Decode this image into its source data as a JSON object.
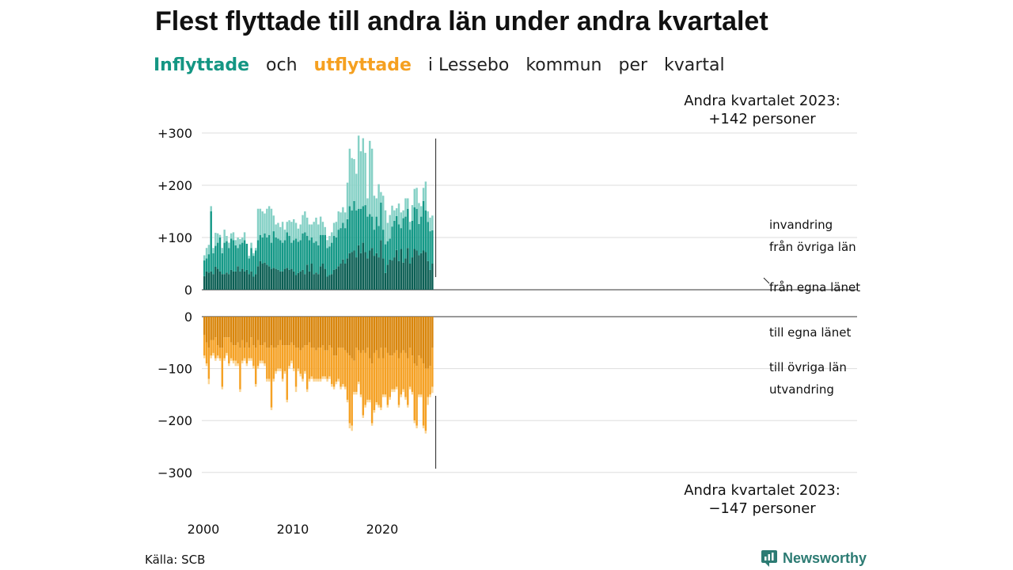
{
  "header": {
    "title": "Flest flyttade till andra län under andra kvartalet",
    "subtitle_in": "Inflyttade",
    "subtitle_och": "och",
    "subtitle_ut": "utflyttade",
    "subtitle_rest_1": "i Lessebo",
    "subtitle_rest_2": "kommun",
    "subtitle_rest_3": "per",
    "subtitle_rest_4": "kvartal"
  },
  "annotations": {
    "top_line1": "Andra kvartalet 2023:",
    "top_line2": "+142 personer",
    "bottom_line1": "Andra kvartalet 2023:",
    "bottom_line2": "−147 personer"
  },
  "footer": {
    "source": "Källa: SCB",
    "brand": "Newsworthy"
  },
  "colors": {
    "in_egna": "#0c5f54",
    "in_ovriga": "#159987",
    "in_invandring": "#86d1c6",
    "ut_egna": "#d9860c",
    "ut_ovriga": "#f5a124",
    "ut_utvandring": "#fbd595",
    "grid": "#dddddd",
    "brand": "#2c7b73"
  },
  "chart_data": {
    "type": "bar",
    "title": "Flest flyttade till andra län under andra kvartalet",
    "y_ticks_top": [
      "+300",
      "+200",
      "+100",
      "0"
    ],
    "y_ticks_top_values": [
      300,
      200,
      100,
      0
    ],
    "y_ticks_bottom": [
      "0",
      "−100",
      "−200",
      "−300"
    ],
    "y_ticks_bottom_values": [
      0,
      -100,
      -200,
      -300
    ],
    "x_ticks": [
      "2000",
      "2010",
      "2020"
    ],
    "x_tick_years": [
      2000,
      2010,
      2020
    ],
    "ylim_top": [
      0,
      300
    ],
    "ylim_bottom": [
      -300,
      0
    ],
    "grid": true,
    "legend_top": [
      "invandring",
      "från övriga län",
      "från egna länet"
    ],
    "legend_bottom": [
      "till egna länet",
      "till övriga län",
      "utvandring"
    ],
    "start_year": 2000,
    "start_quarter": 1,
    "in_egna": [
      26,
      35,
      33,
      35,
      30,
      44,
      40,
      35,
      30,
      30,
      33,
      30,
      38,
      35,
      35,
      45,
      35,
      40,
      35,
      38,
      30,
      35,
      25,
      30,
      45,
      55,
      50,
      52,
      48,
      45,
      40,
      42,
      40,
      38,
      35,
      35,
      40,
      42,
      38,
      40,
      35,
      28,
      32,
      35,
      38,
      30,
      48,
      35,
      50,
      30,
      33,
      30,
      45,
      50,
      40,
      25,
      28,
      30,
      38,
      40,
      45,
      50,
      58,
      50,
      60,
      70,
      72,
      75,
      62,
      85,
      70,
      90,
      72,
      60,
      75,
      80,
      65,
      70,
      62,
      95,
      60,
      32,
      48,
      58,
      56,
      62,
      76,
      55,
      78,
      52,
      60,
      80,
      50,
      62,
      78,
      75,
      66,
      70,
      75,
      72,
      55,
      38,
      50
    ],
    "in_ovriga": [
      30,
      25,
      35,
      115,
      40,
      40,
      50,
      65,
      40,
      60,
      60,
      50,
      60,
      60,
      50,
      35,
      52,
      50,
      60,
      50,
      30,
      45,
      40,
      45,
      50,
      50,
      50,
      56,
      52,
      60,
      50,
      70,
      60,
      60,
      60,
      55,
      55,
      68,
      65,
      50,
      60,
      70,
      60,
      60,
      70,
      80,
      55,
      60,
      50,
      60,
      60,
      55,
      60,
      55,
      65,
      55,
      55,
      60,
      65,
      60,
      70,
      68,
      70,
      68,
      75,
      90,
      80,
      95,
      90,
      70,
      85,
      70,
      90,
      80,
      70,
      60,
      50,
      70,
      60,
      72,
      55,
      55,
      45,
      40,
      65,
      70,
      65,
      70,
      40,
      85,
      80,
      75,
      65,
      70,
      80,
      80,
      60,
      70,
      95,
      80,
      75,
      74,
      64
    ],
    "in_invandring": [
      10,
      20,
      18,
      10,
      10,
      25,
      18,
      5,
      10,
      25,
      10,
      10,
      10,
      15,
      10,
      20,
      10,
      10,
      15,
      0,
      5,
      10,
      5,
      5,
      60,
      50,
      50,
      38,
      55,
      55,
      65,
      30,
      25,
      30,
      25,
      40,
      20,
      20,
      30,
      40,
      40,
      30,
      25,
      30,
      35,
      40,
      35,
      30,
      25,
      40,
      45,
      40,
      35,
      25,
      15,
      15,
      20,
      20,
      25,
      30,
      35,
      30,
      30,
      30,
      70,
      110,
      100,
      80,
      70,
      140,
      110,
      130,
      100,
      35,
      140,
      130,
      65,
      35,
      80,
      20,
      65,
      65,
      35,
      45,
      40,
      20,
      15,
      40,
      30,
      15,
      35,
      20,
      15,
      30,
      35,
      40,
      40,
      20,
      25,
      55,
      20,
      26,
      28
    ],
    "ut_egna": [
      -35,
      -50,
      -60,
      -45,
      -45,
      -40,
      -55,
      -60,
      -60,
      -40,
      -40,
      -40,
      -50,
      -55,
      -55,
      -50,
      -60,
      -45,
      -60,
      -50,
      -60,
      -40,
      -55,
      -60,
      -45,
      -55,
      -55,
      -50,
      -60,
      -60,
      -55,
      -60,
      -60,
      -55,
      -45,
      -55,
      -55,
      -55,
      -55,
      -50,
      -55,
      -60,
      -60,
      -65,
      -60,
      -55,
      -55,
      -50,
      -60,
      -60,
      -65,
      -60,
      -60,
      -55,
      -65,
      -65,
      -55,
      -60,
      -75,
      -75,
      -60,
      -60,
      -60,
      -65,
      -70,
      -75,
      -80,
      -85,
      -60,
      -65,
      -70,
      -65,
      -70,
      -60,
      -80,
      -90,
      -70,
      -65,
      -80,
      -60,
      -80,
      -60,
      -70,
      -75,
      -75,
      -70,
      -65,
      -80,
      -70,
      -65,
      -70,
      -80,
      -60,
      -75,
      -90,
      -95,
      -75,
      -80,
      -90,
      -100,
      -100,
      -95,
      -60
    ],
    "ut_ovriga": [
      -40,
      -40,
      -60,
      -30,
      -25,
      -40,
      -20,
      -20,
      -75,
      -40,
      -30,
      -50,
      -30,
      -30,
      -30,
      -40,
      -80,
      -40,
      -20,
      -40,
      -20,
      -40,
      -40,
      -70,
      -50,
      -30,
      -30,
      -40,
      -60,
      -60,
      -120,
      -60,
      -45,
      -45,
      -55,
      -65,
      -50,
      -105,
      -40,
      -35,
      -45,
      -75,
      -40,
      -45,
      -60,
      -50,
      -85,
      -70,
      -55,
      -60,
      -55,
      -60,
      -60,
      -60,
      -50,
      -55,
      -60,
      -70,
      -60,
      -50,
      -60,
      -75,
      -70,
      -70,
      -90,
      -130,
      -130,
      -60,
      -85,
      -60,
      -80,
      -125,
      -100,
      -100,
      -80,
      -115,
      -110,
      -100,
      -90,
      -115,
      -70,
      -90,
      -100,
      -80,
      -65,
      -70,
      -70,
      -90,
      -80,
      -75,
      -85,
      -90,
      -75,
      -70,
      -110,
      -115,
      -75,
      -70,
      -120,
      -120,
      -55,
      -55,
      -75
    ],
    "ut_utvandring": [
      -5,
      -5,
      -10,
      -5,
      -5,
      -5,
      -5,
      -5,
      -5,
      -5,
      -5,
      -5,
      -5,
      -5,
      -10,
      -5,
      -5,
      -5,
      -5,
      -5,
      -5,
      -5,
      -5,
      -5,
      -5,
      -5,
      -5,
      -5,
      -5,
      -5,
      -5,
      -5,
      -5,
      -5,
      -5,
      -5,
      -5,
      -5,
      -5,
      -5,
      -5,
      -10,
      -5,
      -5,
      -5,
      -5,
      -5,
      -5,
      -5,
      -5,
      -5,
      -5,
      -5,
      -5,
      -5,
      -5,
      -5,
      -5,
      -5,
      -5,
      -5,
      -5,
      -5,
      -5,
      -5,
      -10,
      -10,
      -5,
      -5,
      -5,
      -5,
      -5,
      -5,
      -5,
      -5,
      -5,
      -5,
      -5,
      -5,
      -5,
      -5,
      -5,
      -5,
      -5,
      -5,
      -5,
      -5,
      -5,
      -5,
      -5,
      -5,
      -5,
      -5,
      -5,
      -5,
      -5,
      -5,
      -5,
      -5,
      -5,
      -15,
      -5,
      -12
    ]
  }
}
